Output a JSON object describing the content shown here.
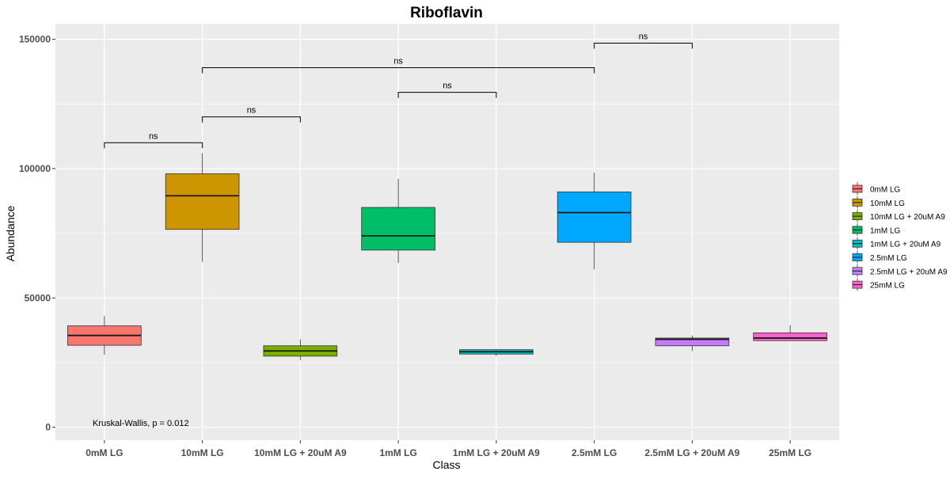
{
  "chart_data": {
    "type": "box",
    "title": "Riboflavin",
    "xlabel": "Class",
    "ylabel": "Abundance",
    "ylim": [
      -5000,
      156000
    ],
    "yticks": [
      0,
      50000,
      100000,
      150000
    ],
    "ytick_labels": [
      "0",
      "50000",
      "100000",
      "150000"
    ],
    "grid": true,
    "legend_position": "right",
    "categories": [
      "0mM LG",
      "10mM LG",
      "10mM LG + 20uM A9",
      "1mM LG",
      "1mM LG + 20uM A9",
      "2.5mM LG",
      "2.5mM LG + 20uM A9",
      "25mM LG"
    ],
    "boxes": [
      {
        "name": "0mM LG",
        "min": 28000,
        "q1": 31700,
        "median": 35500,
        "q3": 39200,
        "max": 43000,
        "color": "#F8766D"
      },
      {
        "name": "10mM LG",
        "min": 64000,
        "q1": 76500,
        "median": 89500,
        "q3": 98000,
        "max": 106000,
        "color": "#CD9600"
      },
      {
        "name": "10mM LG + 20uM A9",
        "min": 26000,
        "q1": 27500,
        "median": 29500,
        "q3": 31500,
        "max": 34000,
        "color": "#7CAE00"
      },
      {
        "name": "1mM LG",
        "min": 63500,
        "q1": 68500,
        "median": 74000,
        "q3": 85000,
        "max": 96000,
        "color": "#00BE67"
      },
      {
        "name": "1mM LG + 20uM A9",
        "min": 27500,
        "q1": 28300,
        "median": 29200,
        "q3": 30000,
        "max": 30300,
        "color": "#00BFC4"
      },
      {
        "name": "2.5mM LG",
        "min": 61000,
        "q1": 71500,
        "median": 83000,
        "q3": 91000,
        "max": 98500,
        "color": "#00A9FF"
      },
      {
        "name": "2.5mM LG + 20uM A9",
        "min": 29500,
        "q1": 31500,
        "median": 34000,
        "q3": 34500,
        "max": 35500,
        "color": "#C77CFF"
      },
      {
        "name": "25mM LG",
        "min": 33500,
        "q1": 33500,
        "median": 34500,
        "q3": 36500,
        "max": 39500,
        "color": "#FF61CC"
      }
    ],
    "brackets": [
      {
        "from": 0,
        "to": 1,
        "y": 110000,
        "label": "ns"
      },
      {
        "from": 1,
        "to": 2,
        "y": 120000,
        "label": "ns"
      },
      {
        "from": 3,
        "to": 4,
        "y": 129500,
        "label": "ns"
      },
      {
        "from": 1,
        "to": 5,
        "y": 139000,
        "label": "ns"
      },
      {
        "from": 5,
        "to": 6,
        "y": 148500,
        "label": "ns"
      }
    ],
    "annotation": "Kruskal-Wallis, p = 0.012",
    "legend_entries": [
      "0mM LG",
      "10mM LG",
      "10mM LG + 20uM A9",
      "1mM LG",
      "1mM LG + 20uM A9",
      "2.5mM LG",
      "2.5mM LG + 20uM A9",
      "25mM LG"
    ]
  }
}
